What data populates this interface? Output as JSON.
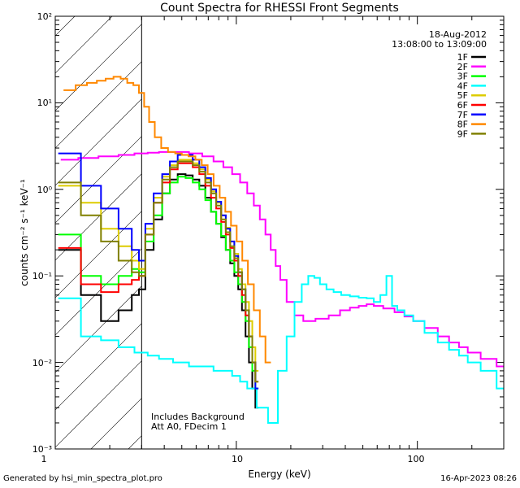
{
  "chart_data": {
    "type": "line",
    "title": "Count Spectra for RHESSI Front Segments",
    "xlabel": "Energy (keV)",
    "ylabel": "counts cm⁻² s⁻¹ keV⁻¹",
    "xscale": "log",
    "yscale": "log",
    "xlim": [
      1,
      300
    ],
    "ylim": [
      0.001,
      100
    ],
    "x_tick_labels": [
      "1",
      "10",
      "100"
    ],
    "y_tick_labels": [
      "10⁻³",
      "10⁻²",
      "10⁻¹",
      "10⁰",
      "10¹",
      "10²"
    ],
    "shaded_region": [
      1,
      3
    ],
    "info": {
      "date": "18-Aug-2012",
      "time_range": "13:08:00 to 13:09:00"
    },
    "annotations": [
      "Includes Background",
      "Att A0, FDecim 1"
    ],
    "legend_position": "top-right",
    "series": [
      {
        "name": "1F",
        "color": "#000000",
        "x": [
          1.2,
          1.6,
          2.0,
          2.5,
          2.8,
          3.0,
          3.3,
          3.7,
          4.1,
          4.5,
          5.0,
          5.5,
          6.0,
          6.5,
          7.0,
          7.5,
          8.0,
          8.5,
          9.0,
          9.5,
          10,
          10.5,
          11,
          11.5,
          12,
          12.5,
          13
        ],
        "y": [
          0.2,
          0.06,
          0.03,
          0.04,
          0.06,
          0.07,
          0.2,
          0.45,
          0.9,
          1.3,
          1.5,
          1.45,
          1.3,
          1.1,
          0.8,
          0.55,
          0.4,
          0.28,
          0.2,
          0.14,
          0.1,
          0.07,
          0.04,
          0.02,
          0.01,
          0.005,
          0.003
        ]
      },
      {
        "name": "2F",
        "color": "#ff00ff",
        "x": [
          1.2,
          1.5,
          2.0,
          2.5,
          3.0,
          3.5,
          4.0,
          5.0,
          6.0,
          7.0,
          8.0,
          9.0,
          10,
          11,
          12,
          13,
          14,
          15,
          16,
          17,
          18,
          20,
          22,
          25,
          30,
          35,
          40,
          45,
          50,
          55,
          60,
          70,
          80,
          90,
          100,
          120,
          140,
          160,
          180,
          200,
          250,
          300
        ],
        "y": [
          2.2,
          2.3,
          2.4,
          2.5,
          2.6,
          2.65,
          2.7,
          2.7,
          2.6,
          2.4,
          2.1,
          1.8,
          1.5,
          1.2,
          0.9,
          0.65,
          0.45,
          0.3,
          0.2,
          0.13,
          0.09,
          0.05,
          0.035,
          0.03,
          0.032,
          0.035,
          0.04,
          0.043,
          0.045,
          0.047,
          0.045,
          0.042,
          0.038,
          0.034,
          0.03,
          0.025,
          0.02,
          0.017,
          0.015,
          0.013,
          0.011,
          0.009
        ]
      },
      {
        "name": "3F",
        "color": "#00ff00",
        "x": [
          1.2,
          1.6,
          2.0,
          2.5,
          2.8,
          3.0,
          3.3,
          3.7,
          4.1,
          4.5,
          5.0,
          5.5,
          6.0,
          6.5,
          7.0,
          7.5,
          8.0,
          8.5,
          9.0,
          9.5,
          10,
          10.5,
          11,
          11.5,
          12,
          12.5,
          13
        ],
        "y": [
          0.3,
          0.1,
          0.08,
          0.1,
          0.12,
          0.11,
          0.25,
          0.5,
          0.9,
          1.2,
          1.4,
          1.35,
          1.2,
          1.0,
          0.75,
          0.55,
          0.4,
          0.29,
          0.2,
          0.15,
          0.11,
          0.08,
          0.05,
          0.03,
          0.015,
          0.008,
          0.005
        ]
      },
      {
        "name": "4F",
        "color": "#00ffff",
        "x": [
          1.2,
          1.6,
          2.0,
          2.5,
          3.0,
          3.5,
          4.0,
          5.0,
          6.0,
          7.0,
          8.0,
          9.0,
          10,
          11,
          12,
          14,
          16,
          18,
          20,
          22,
          24,
          26,
          28,
          30,
          33,
          36,
          40,
          45,
          50,
          55,
          60,
          65,
          70,
          75,
          80,
          90,
          100,
          120,
          140,
          160,
          180,
          200,
          250,
          300
        ],
        "y": [
          0.055,
          0.02,
          0.018,
          0.015,
          0.013,
          0.012,
          0.011,
          0.01,
          0.009,
          0.009,
          0.008,
          0.008,
          0.007,
          0.006,
          0.005,
          0.003,
          0.002,
          0.008,
          0.02,
          0.05,
          0.08,
          0.1,
          0.095,
          0.08,
          0.07,
          0.065,
          0.06,
          0.058,
          0.056,
          0.055,
          0.05,
          0.06,
          0.1,
          0.045,
          0.04,
          0.035,
          0.03,
          0.022,
          0.017,
          0.014,
          0.012,
          0.01,
          0.008,
          0.005
        ]
      },
      {
        "name": "5F",
        "color": "#ddcc00",
        "x": [
          1.2,
          1.6,
          2.0,
          2.5,
          2.8,
          3.0,
          3.3,
          3.7,
          4.1,
          4.5,
          5.0,
          5.5,
          6.0,
          6.5,
          7.0,
          7.5,
          8.0,
          8.5,
          9.0,
          9.5,
          10,
          10.5,
          11,
          11.5,
          12,
          12.5,
          13
        ],
        "y": [
          1.1,
          0.7,
          0.35,
          0.22,
          0.15,
          0.12,
          0.35,
          0.8,
          1.4,
          1.9,
          2.2,
          2.2,
          2.0,
          1.7,
          1.3,
          0.95,
          0.7,
          0.5,
          0.36,
          0.25,
          0.18,
          0.12,
          0.08,
          0.05,
          0.03,
          0.015,
          0.008
        ]
      },
      {
        "name": "6F",
        "color": "#ff0000",
        "x": [
          1.2,
          1.6,
          2.0,
          2.5,
          2.8,
          3.0,
          3.3,
          3.7,
          4.1,
          4.5,
          5.0,
          5.5,
          6.0,
          6.5,
          7.0,
          7.5,
          8.0,
          8.5,
          9.0,
          9.5,
          10,
          10.5,
          11,
          11.5,
          12,
          12.5,
          13
        ],
        "y": [
          0.21,
          0.08,
          0.065,
          0.08,
          0.09,
          0.1,
          0.3,
          0.7,
          1.2,
          1.7,
          2.0,
          2.0,
          1.8,
          1.5,
          1.1,
          0.8,
          0.6,
          0.42,
          0.3,
          0.21,
          0.15,
          0.1,
          0.06,
          0.035,
          0.02,
          0.01,
          0.006
        ]
      },
      {
        "name": "7F",
        "color": "#0000ff",
        "x": [
          1.2,
          1.6,
          2.0,
          2.5,
          2.8,
          3.0,
          3.3,
          3.7,
          4.1,
          4.5,
          5.0,
          5.5,
          6.0,
          6.5,
          7.0,
          7.5,
          8.0,
          8.5,
          9.0,
          9.5,
          10,
          10.5,
          11,
          11.5,
          12,
          12.5,
          13
        ],
        "y": [
          2.6,
          1.1,
          0.6,
          0.35,
          0.2,
          0.15,
          0.4,
          0.9,
          1.5,
          2.1,
          2.5,
          2.5,
          2.2,
          1.8,
          1.35,
          1.0,
          0.72,
          0.5,
          0.35,
          0.25,
          0.17,
          0.11,
          0.07,
          0.04,
          0.02,
          0.01,
          0.005
        ]
      },
      {
        "name": "8F",
        "color": "#ff8800",
        "x": [
          1.2,
          1.4,
          1.6,
          1.8,
          2.0,
          2.2,
          2.4,
          2.6,
          2.8,
          3.0,
          3.2,
          3.4,
          3.7,
          4.0,
          4.4,
          4.8,
          5.2,
          5.7,
          6.2,
          6.7,
          7.2,
          7.8,
          8.4,
          9.0,
          9.7,
          10.4,
          11.2,
          12,
          13,
          14,
          15
        ],
        "y": [
          14,
          16,
          17,
          18,
          19,
          20,
          19,
          17,
          16,
          13,
          9,
          6,
          4,
          3,
          2.7,
          2.6,
          2.5,
          2.4,
          2.2,
          1.9,
          1.5,
          1.1,
          0.8,
          0.55,
          0.38,
          0.25,
          0.15,
          0.08,
          0.04,
          0.02,
          0.01
        ]
      },
      {
        "name": "9F",
        "color": "#808000",
        "x": [
          1.2,
          1.6,
          2.0,
          2.5,
          2.8,
          3.0,
          3.3,
          3.7,
          4.1,
          4.5,
          5.0,
          5.5,
          6.0,
          6.5,
          7.0,
          7.5,
          8.0,
          8.5,
          9.0,
          9.5,
          10,
          10.5,
          11,
          11.5,
          12,
          12.5,
          13
        ],
        "y": [
          1.2,
          0.5,
          0.25,
          0.15,
          0.11,
          0.1,
          0.3,
          0.7,
          1.3,
          1.8,
          2.1,
          2.1,
          1.9,
          1.6,
          1.2,
          0.9,
          0.65,
          0.45,
          0.32,
          0.22,
          0.16,
          0.11,
          0.07,
          0.04,
          0.02,
          0.01,
          0.006
        ]
      }
    ]
  },
  "footer": {
    "left": "Generated by hsi_min_spectra_plot.pro",
    "right": "16-Apr-2023 08:26"
  }
}
